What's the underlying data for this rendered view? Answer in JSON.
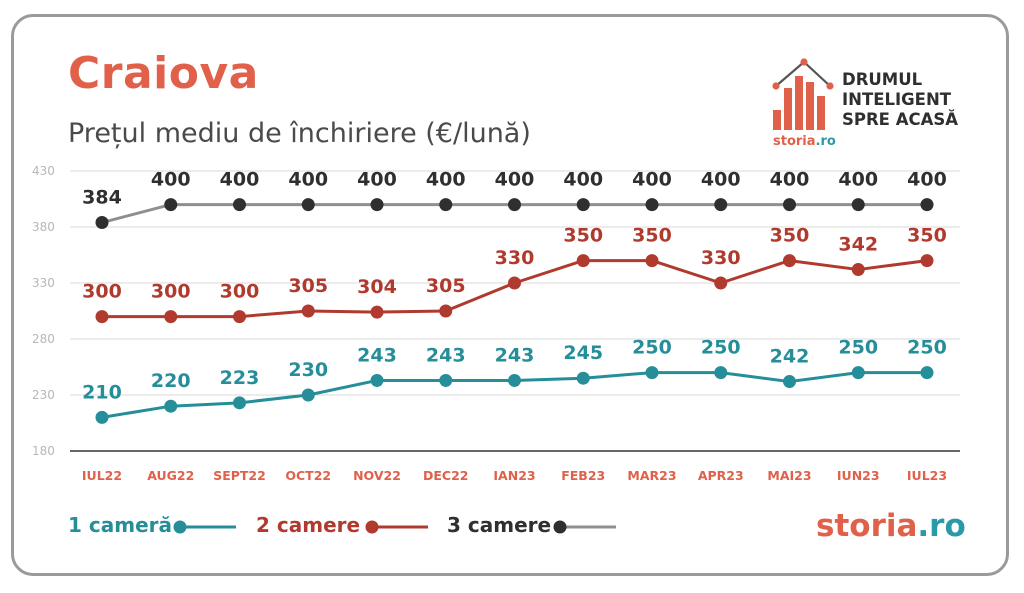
{
  "title": "Craiova",
  "subtitle": "Prețul mediu de închiriere (€/lună)",
  "brand": {
    "tagline_lines": [
      "DRUMUL",
      "INTELIGENT",
      "SPRE ACASĂ"
    ],
    "logo_small_main": "storia",
    "logo_small_ro": ".ro",
    "footer_main": "storia",
    "footer_ro": ".ro"
  },
  "colors": {
    "one_room": "#258e98",
    "two_rooms": "#b03a2e",
    "three_rooms": "#2f2f2f",
    "three_rooms_line": "#8f8f8f",
    "category_labels": "#e0604a",
    "grid": "#d8d8d8",
    "tick_labels": "#b8b8b8"
  },
  "chart_data": {
    "type": "line",
    "categories": [
      "IUL22",
      "AUG22",
      "SEPT22",
      "OCT22",
      "NOV22",
      "DEC22",
      "IAN23",
      "FEB23",
      "MAR23",
      "APR23",
      "MAI23",
      "IUN23",
      "IUL23"
    ],
    "yticks": [
      180,
      230,
      280,
      330,
      380,
      430
    ],
    "ylim": [
      180,
      430
    ],
    "grid": true,
    "legend_position": "bottom-left",
    "series": [
      {
        "name": "1 cameră",
        "color": "#258e98",
        "line_color": "#258e98",
        "values": [
          210,
          220,
          223,
          230,
          243,
          243,
          243,
          245,
          250,
          250,
          242,
          250,
          250
        ]
      },
      {
        "name": "2 camere",
        "color": "#b03a2e",
        "line_color": "#b03a2e",
        "values": [
          300,
          300,
          300,
          305,
          304,
          305,
          330,
          350,
          350,
          330,
          350,
          342,
          350
        ]
      },
      {
        "name": "3 camere",
        "color": "#2f2f2f",
        "line_color": "#8f8f8f",
        "values": [
          384,
          400,
          400,
          400,
          400,
          400,
          400,
          400,
          400,
          400,
          400,
          400,
          400
        ]
      }
    ]
  }
}
